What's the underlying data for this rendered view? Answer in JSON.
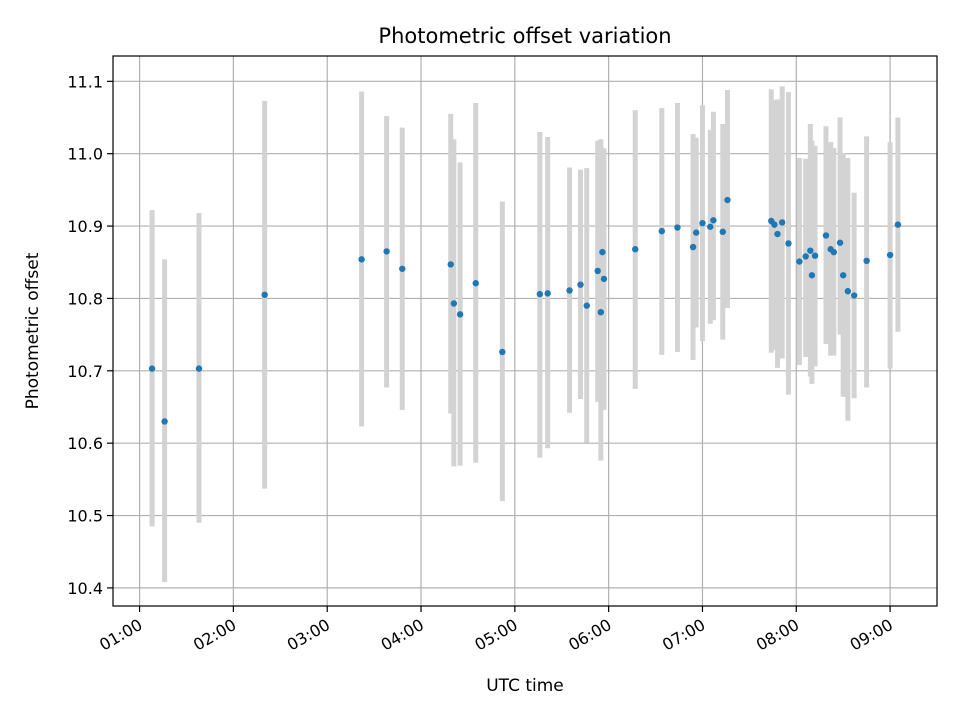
{
  "chart_data": {
    "type": "scatter",
    "title": "Photometric offset variation",
    "xlabel": "UTC time",
    "ylabel": "Photometric offset",
    "x_ticks": [
      "01:00",
      "02:00",
      "03:00",
      "04:00",
      "05:00",
      "06:00",
      "07:00",
      "08:00",
      "09:00"
    ],
    "y_ticks": [
      "10.4",
      "10.5",
      "10.6",
      "10.7",
      "10.8",
      "10.9",
      "11.0",
      "11.1"
    ],
    "xlim": [
      "00:43",
      "09:30"
    ],
    "ylim": [
      10.375,
      11.135
    ],
    "grid": true,
    "colors": {
      "point": "#1f77b4",
      "errorbar": "#d3d3d3",
      "grid": "#b0b0b0",
      "axis": "#000000"
    },
    "series": [
      {
        "points": [
          {
            "x": "01:08",
            "y": 10.703,
            "lo": 10.485,
            "hi": 10.922
          },
          {
            "x": "01:16",
            "y": 10.63,
            "lo": 10.408,
            "hi": 10.854
          },
          {
            "x": "01:38",
            "y": 10.703,
            "lo": 10.49,
            "hi": 10.918
          },
          {
            "x": "02:20",
            "y": 10.805,
            "lo": 10.537,
            "hi": 11.073
          },
          {
            "x": "03:22",
            "y": 10.854,
            "lo": 10.623,
            "hi": 11.086
          },
          {
            "x": "03:38",
            "y": 10.865,
            "lo": 10.677,
            "hi": 11.052
          },
          {
            "x": "03:48",
            "y": 10.841,
            "lo": 10.646,
            "hi": 11.036
          },
          {
            "x": "04:19",
            "y": 10.847,
            "lo": 10.641,
            "hi": 11.055
          },
          {
            "x": "04:21",
            "y": 10.793,
            "lo": 10.568,
            "hi": 11.02
          },
          {
            "x": "04:25",
            "y": 10.778,
            "lo": 10.569,
            "hi": 10.988
          },
          {
            "x": "04:35",
            "y": 10.821,
            "lo": 10.573,
            "hi": 11.07
          },
          {
            "x": "04:52",
            "y": 10.726,
            "lo": 10.52,
            "hi": 10.934
          },
          {
            "x": "05:16",
            "y": 10.806,
            "lo": 10.58,
            "hi": 11.03
          },
          {
            "x": "05:21",
            "y": 10.807,
            "lo": 10.593,
            "hi": 11.023
          },
          {
            "x": "05:35",
            "y": 10.811,
            "lo": 10.642,
            "hi": 10.981
          },
          {
            "x": "05:42",
            "y": 10.819,
            "lo": 10.661,
            "hi": 10.978
          },
          {
            "x": "05:46",
            "y": 10.79,
            "lo": 10.601,
            "hi": 10.98
          },
          {
            "x": "05:53",
            "y": 10.838,
            "lo": 10.657,
            "hi": 11.018
          },
          {
            "x": "05:55",
            "y": 10.781,
            "lo": 10.576,
            "hi": 11.02
          },
          {
            "x": "05:56",
            "y": 10.864,
            "lo": 10.72,
            "hi": 11.008
          },
          {
            "x": "05:57",
            "y": 10.827,
            "lo": 10.646,
            "hi": 11.007
          },
          {
            "x": "06:17",
            "y": 10.868,
            "lo": 10.675,
            "hi": 11.06
          },
          {
            "x": "06:34",
            "y": 10.893,
            "lo": 10.722,
            "hi": 11.063
          },
          {
            "x": "06:44",
            "y": 10.898,
            "lo": 10.726,
            "hi": 11.07
          },
          {
            "x": "06:54",
            "y": 10.871,
            "lo": 10.715,
            "hi": 11.027
          },
          {
            "x": "06:56",
            "y": 10.891,
            "lo": 10.76,
            "hi": 11.022
          },
          {
            "x": "07:00",
            "y": 10.904,
            "lo": 10.741,
            "hi": 11.067
          },
          {
            "x": "07:05",
            "y": 10.899,
            "lo": 10.765,
            "hi": 11.033
          },
          {
            "x": "07:07",
            "y": 10.908,
            "lo": 10.77,
            "hi": 11.058
          },
          {
            "x": "07:13",
            "y": 10.892,
            "lo": 10.743,
            "hi": 11.041
          },
          {
            "x": "07:16",
            "y": 10.936,
            "lo": 10.787,
            "hi": 11.088
          },
          {
            "x": "07:44",
            "y": 10.907,
            "lo": 10.725,
            "hi": 11.089
          },
          {
            "x": "07:46",
            "y": 10.902,
            "lo": 10.729,
            "hi": 11.074
          },
          {
            "x": "07:48",
            "y": 10.889,
            "lo": 10.704,
            "hi": 11.075
          },
          {
            "x": "07:51",
            "y": 10.905,
            "lo": 10.717,
            "hi": 11.093
          },
          {
            "x": "07:55",
            "y": 10.876,
            "lo": 10.667,
            "hi": 11.085
          },
          {
            "x": "08:02",
            "y": 10.851,
            "lo": 10.708,
            "hi": 10.994
          },
          {
            "x": "08:06",
            "y": 10.858,
            "lo": 10.719,
            "hi": 10.993
          },
          {
            "x": "08:09",
            "y": 10.866,
            "lo": 10.692,
            "hi": 11.041
          },
          {
            "x": "08:10",
            "y": 10.832,
            "lo": 10.682,
            "hi": 11.018
          },
          {
            "x": "08:12",
            "y": 10.859,
            "lo": 10.706,
            "hi": 11.011
          },
          {
            "x": "08:19",
            "y": 10.887,
            "lo": 10.737,
            "hi": 11.038
          },
          {
            "x": "08:22",
            "y": 10.868,
            "lo": 10.721,
            "hi": 11.016
          },
          {
            "x": "08:24",
            "y": 10.864,
            "lo": 10.721,
            "hi": 11.008
          },
          {
            "x": "08:28",
            "y": 10.877,
            "lo": 10.75,
            "hi": 11.05
          },
          {
            "x": "08:30",
            "y": 10.832,
            "lo": 10.664,
            "hi": 11.001
          },
          {
            "x": "08:33",
            "y": 10.81,
            "lo": 10.631,
            "hi": 10.994
          },
          {
            "x": "08:37",
            "y": 10.804,
            "lo": 10.662,
            "hi": 10.946
          },
          {
            "x": "08:45",
            "y": 10.852,
            "lo": 10.677,
            "hi": 11.024
          },
          {
            "x": "09:00",
            "y": 10.86,
            "lo": 10.703,
            "hi": 11.016
          },
          {
            "x": "09:05",
            "y": 10.902,
            "lo": 10.754,
            "hi": 11.05
          }
        ]
      }
    ]
  }
}
